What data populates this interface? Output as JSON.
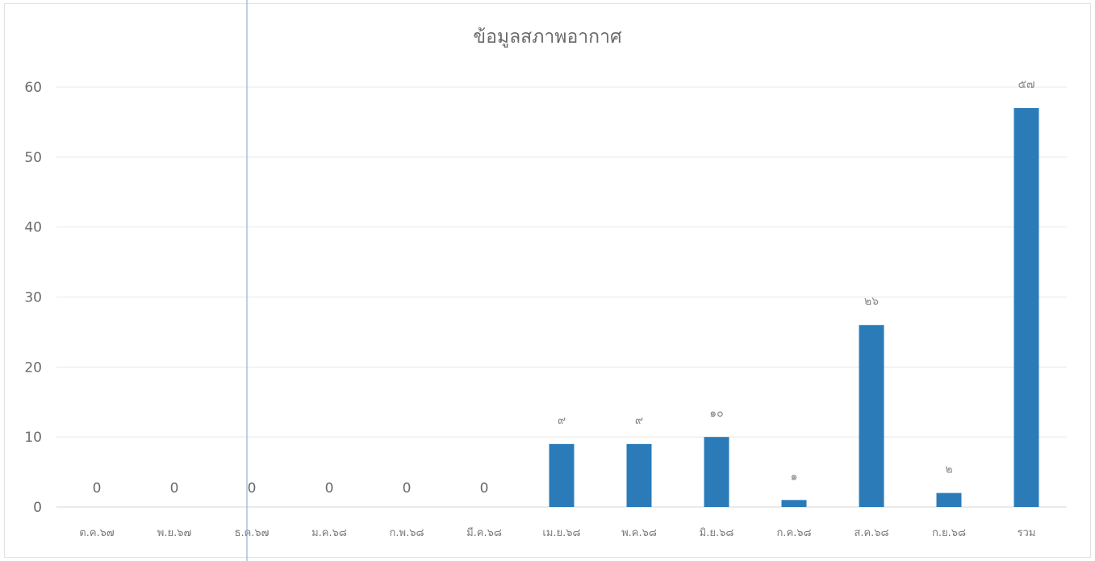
{
  "chart_data": {
    "type": "bar",
    "title": "ข้อมูลสภาพอากาศ",
    "xlabel": "",
    "ylabel": "",
    "categories": [
      "ต.ค.๖๗",
      "พ.ย.๖๗",
      "ธ.ค.๖๗",
      "ม.ค.๖๘",
      "ก.พ.๖๘",
      "มี.ค.๖๘",
      "เม.ย.๖๘",
      "พ.ค.๖๘",
      "มิ.ย.๖๘",
      "ก.ค.๖๘",
      "ส.ค.๖๘",
      "ก.ย.๖๘",
      "รวม"
    ],
    "values": [
      0,
      0,
      0,
      0,
      0,
      0,
      9,
      9,
      10,
      1,
      26,
      2,
      57
    ],
    "data_labels": [
      "0",
      "0",
      "0",
      "0",
      "0",
      "0",
      "๙",
      "๙",
      "๑๐",
      "๑",
      "๒๖",
      "๒",
      "๕๗"
    ],
    "ylim": [
      0,
      60
    ],
    "yticks": [
      0,
      10,
      20,
      30,
      40,
      50,
      60
    ],
    "grid": true,
    "legend": "none",
    "bar_color": "#2b7bb9"
  }
}
